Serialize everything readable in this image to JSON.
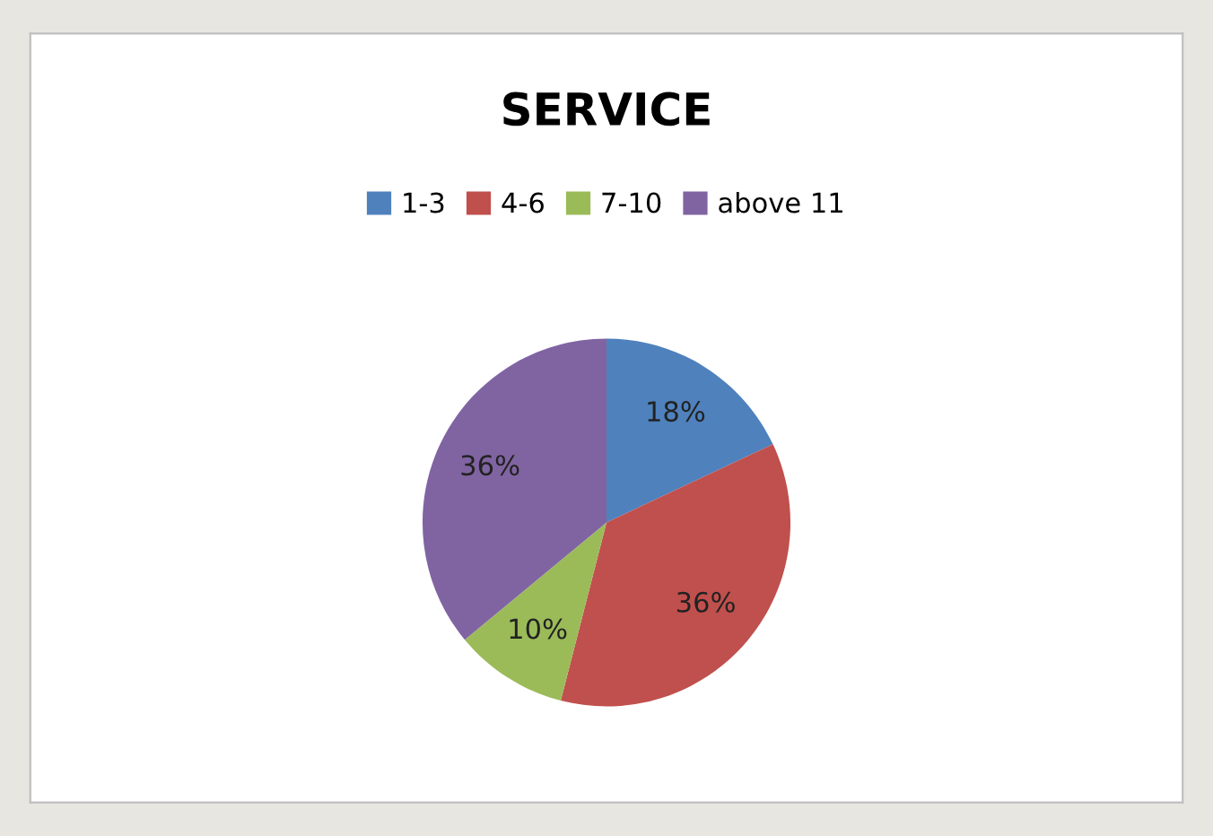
{
  "chart_data": {
    "type": "pie",
    "title": "SERVICE",
    "categories": [
      "1-3",
      "4-6",
      "7-10",
      "above 11"
    ],
    "values": [
      18,
      36,
      10,
      36
    ],
    "colors": [
      "#4f81bd",
      "#c0504d",
      "#9bbb59",
      "#8064a2"
    ],
    "value_labels": [
      "18%",
      "36%",
      "10%",
      "36%"
    ],
    "legend": "top"
  }
}
